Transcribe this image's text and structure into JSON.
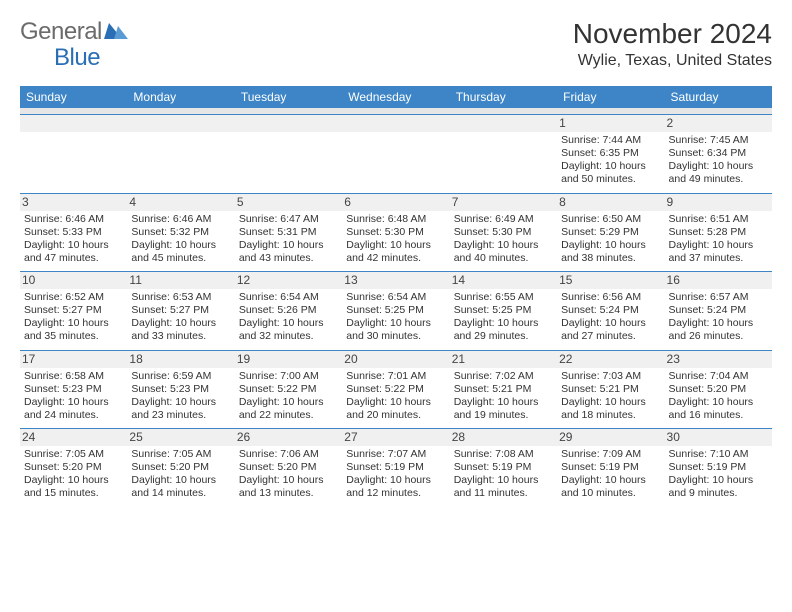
{
  "brand": {
    "part1": "General",
    "part2": "Blue",
    "color_gray": "#6b6b6b",
    "color_blue": "#2a6fb5"
  },
  "title": "November 2024",
  "location": "Wylie, Texas, United States",
  "header_bg": "#3d85c6",
  "header_fg": "#ffffff",
  "cell_border": "#3d85c6",
  "daynum_bg": "#f0f0f0",
  "dow": [
    "Sunday",
    "Monday",
    "Tuesday",
    "Wednesday",
    "Thursday",
    "Friday",
    "Saturday"
  ],
  "weeks": [
    [
      null,
      null,
      null,
      null,
      null,
      {
        "n": "1",
        "sr": "7:44 AM",
        "ss": "6:35 PM",
        "dl": "10 hours and 50 minutes."
      },
      {
        "n": "2",
        "sr": "7:45 AM",
        "ss": "6:34 PM",
        "dl": "10 hours and 49 minutes."
      }
    ],
    [
      {
        "n": "3",
        "sr": "6:46 AM",
        "ss": "5:33 PM",
        "dl": "10 hours and 47 minutes."
      },
      {
        "n": "4",
        "sr": "6:46 AM",
        "ss": "5:32 PM",
        "dl": "10 hours and 45 minutes."
      },
      {
        "n": "5",
        "sr": "6:47 AM",
        "ss": "5:31 PM",
        "dl": "10 hours and 43 minutes."
      },
      {
        "n": "6",
        "sr": "6:48 AM",
        "ss": "5:30 PM",
        "dl": "10 hours and 42 minutes."
      },
      {
        "n": "7",
        "sr": "6:49 AM",
        "ss": "5:30 PM",
        "dl": "10 hours and 40 minutes."
      },
      {
        "n": "8",
        "sr": "6:50 AM",
        "ss": "5:29 PM",
        "dl": "10 hours and 38 minutes."
      },
      {
        "n": "9",
        "sr": "6:51 AM",
        "ss": "5:28 PM",
        "dl": "10 hours and 37 minutes."
      }
    ],
    [
      {
        "n": "10",
        "sr": "6:52 AM",
        "ss": "5:27 PM",
        "dl": "10 hours and 35 minutes."
      },
      {
        "n": "11",
        "sr": "6:53 AM",
        "ss": "5:27 PM",
        "dl": "10 hours and 33 minutes."
      },
      {
        "n": "12",
        "sr": "6:54 AM",
        "ss": "5:26 PM",
        "dl": "10 hours and 32 minutes."
      },
      {
        "n": "13",
        "sr": "6:54 AM",
        "ss": "5:25 PM",
        "dl": "10 hours and 30 minutes."
      },
      {
        "n": "14",
        "sr": "6:55 AM",
        "ss": "5:25 PM",
        "dl": "10 hours and 29 minutes."
      },
      {
        "n": "15",
        "sr": "6:56 AM",
        "ss": "5:24 PM",
        "dl": "10 hours and 27 minutes."
      },
      {
        "n": "16",
        "sr": "6:57 AM",
        "ss": "5:24 PM",
        "dl": "10 hours and 26 minutes."
      }
    ],
    [
      {
        "n": "17",
        "sr": "6:58 AM",
        "ss": "5:23 PM",
        "dl": "10 hours and 24 minutes."
      },
      {
        "n": "18",
        "sr": "6:59 AM",
        "ss": "5:23 PM",
        "dl": "10 hours and 23 minutes."
      },
      {
        "n": "19",
        "sr": "7:00 AM",
        "ss": "5:22 PM",
        "dl": "10 hours and 22 minutes."
      },
      {
        "n": "20",
        "sr": "7:01 AM",
        "ss": "5:22 PM",
        "dl": "10 hours and 20 minutes."
      },
      {
        "n": "21",
        "sr": "7:02 AM",
        "ss": "5:21 PM",
        "dl": "10 hours and 19 minutes."
      },
      {
        "n": "22",
        "sr": "7:03 AM",
        "ss": "5:21 PM",
        "dl": "10 hours and 18 minutes."
      },
      {
        "n": "23",
        "sr": "7:04 AM",
        "ss": "5:20 PM",
        "dl": "10 hours and 16 minutes."
      }
    ],
    [
      {
        "n": "24",
        "sr": "7:05 AM",
        "ss": "5:20 PM",
        "dl": "10 hours and 15 minutes."
      },
      {
        "n": "25",
        "sr": "7:05 AM",
        "ss": "5:20 PM",
        "dl": "10 hours and 14 minutes."
      },
      {
        "n": "26",
        "sr": "7:06 AM",
        "ss": "5:20 PM",
        "dl": "10 hours and 13 minutes."
      },
      {
        "n": "27",
        "sr": "7:07 AM",
        "ss": "5:19 PM",
        "dl": "10 hours and 12 minutes."
      },
      {
        "n": "28",
        "sr": "7:08 AM",
        "ss": "5:19 PM",
        "dl": "10 hours and 11 minutes."
      },
      {
        "n": "29",
        "sr": "7:09 AM",
        "ss": "5:19 PM",
        "dl": "10 hours and 10 minutes."
      },
      {
        "n": "30",
        "sr": "7:10 AM",
        "ss": "5:19 PM",
        "dl": "10 hours and 9 minutes."
      }
    ]
  ],
  "labels": {
    "sunrise": "Sunrise: ",
    "sunset": "Sunset: ",
    "daylight": "Daylight: "
  }
}
